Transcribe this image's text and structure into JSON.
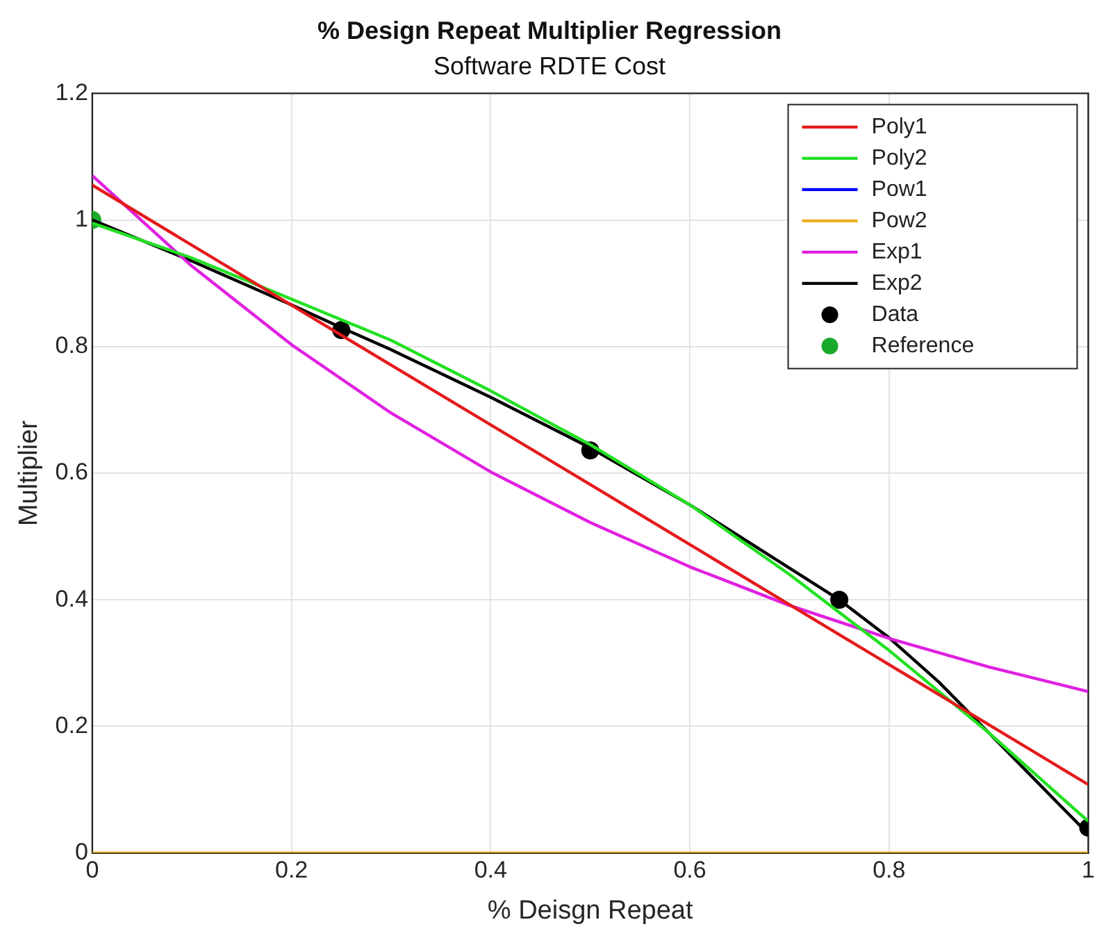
{
  "chart_data": {
    "type": "line",
    "title": "% Design Repeat Multiplier Regression",
    "subtitle": "Software RDTE Cost",
    "xlabel": "% Deisgn Repeat",
    "ylabel": "Multiplier",
    "xlim": [
      0,
      1
    ],
    "xticks": [
      0,
      0.2,
      0.4,
      0.6,
      0.8,
      1
    ],
    "ylim": [
      0,
      1.2
    ],
    "yticks": [
      0,
      0.2,
      0.4,
      0.6,
      0.8,
      1,
      1.2
    ],
    "grid": true,
    "legend": "top right",
    "marker": "none",
    "line_style": "solid",
    "series": [
      {
        "name": "Poly1",
        "color": "#e41a1c",
        "x": [
          0,
          0.25,
          0.5,
          0.75,
          1
        ],
        "values": [
          1.055,
          0.818,
          0.582,
          0.345,
          0.108
        ]
      },
      {
        "name": "Poly2",
        "color": "#22e022",
        "x": [
          0,
          0.1,
          0.2,
          0.3,
          0.4,
          0.5,
          0.6,
          0.7,
          0.8,
          0.9,
          1
        ],
        "values": [
          0.995,
          0.94,
          0.875,
          0.81,
          0.73,
          0.645,
          0.55,
          0.44,
          0.32,
          0.19,
          0.05
        ]
      },
      {
        "name": "Pow1",
        "color": "#0000ff"
      },
      {
        "name": "Pow2",
        "color": "#edb120",
        "x": [
          0,
          1
        ],
        "values": [
          0,
          0
        ]
      },
      {
        "name": "Exp1",
        "color": "#e020e0",
        "x": [
          0,
          0.1,
          0.2,
          0.3,
          0.4,
          0.5,
          0.6,
          0.7,
          0.8,
          0.9,
          1
        ],
        "values": [
          1.07,
          0.927,
          0.803,
          0.695,
          0.602,
          0.522,
          0.452,
          0.391,
          0.339,
          0.294,
          0.255
        ]
      },
      {
        "name": "Exp2",
        "color": "#000000",
        "x": [
          0,
          0.1,
          0.2,
          0.25,
          0.3,
          0.4,
          0.5,
          0.6,
          0.7,
          0.75,
          0.8,
          0.85,
          0.9,
          0.95,
          1
        ],
        "values": [
          1.0,
          0.935,
          0.866,
          0.83,
          0.795,
          0.72,
          0.64,
          0.55,
          0.45,
          0.4,
          0.34,
          0.27,
          0.19,
          0.11,
          0.03
        ]
      },
      {
        "name": "Data",
        "type": "scatter",
        "marker": "circle",
        "color": "#000000",
        "x": [
          0.25,
          0.5,
          0.75,
          1
        ],
        "values": [
          0.826,
          0.636,
          0.4,
          0.04
        ]
      },
      {
        "name": "Reference",
        "type": "scatter",
        "marker": "circle",
        "color": "#1aaa2a",
        "x": [
          0
        ],
        "values": [
          1
        ]
      }
    ]
  }
}
